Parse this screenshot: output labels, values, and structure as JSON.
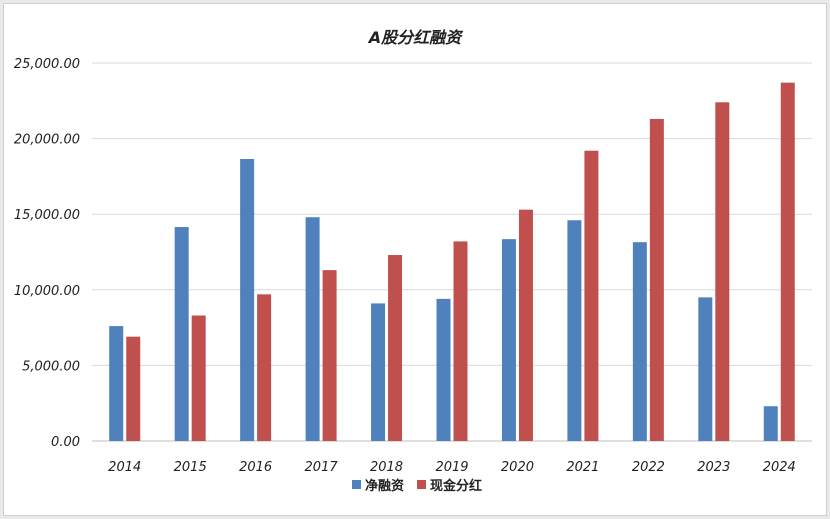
{
  "chart_data": {
    "type": "bar",
    "title": "A股分红融资",
    "xlabel": "",
    "ylabel": "",
    "categories": [
      "2014",
      "2015",
      "2016",
      "2017",
      "2018",
      "2019",
      "2020",
      "2021",
      "2022",
      "2023",
      "2024"
    ],
    "series": [
      {
        "name": "净融资",
        "color": "#4f81bd",
        "values": [
          7600,
          14150,
          18650,
          14800,
          9100,
          9400,
          13350,
          14600,
          13150,
          9500,
          2300
        ]
      },
      {
        "name": "现金分红",
        "color": "#c0504d",
        "values": [
          6900,
          8300,
          9700,
          11300,
          12300,
          13200,
          15300,
          19200,
          21300,
          22400,
          23700
        ]
      }
    ],
    "ylim": [
      0,
      25000
    ],
    "yticks": [
      "0.00",
      "5,000.00",
      "10,000.00",
      "15,000.00",
      "20,000.00",
      "25,000.00"
    ],
    "ytick_values": [
      0,
      5000,
      10000,
      15000,
      20000,
      25000
    ],
    "grid": true,
    "legend_position": "bottom"
  }
}
